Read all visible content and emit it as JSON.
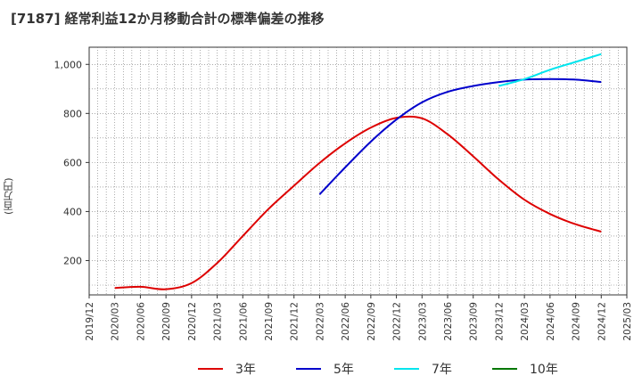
{
  "chart_data": {
    "type": "line",
    "title": "[7187]  経常利益12か月移動合計の標準偏差の推移",
    "ylabel": "(百万円)",
    "xlabel": "",
    "x_ticks": [
      "2019/12",
      "2020/03",
      "2020/06",
      "2020/09",
      "2020/12",
      "2021/03",
      "2021/06",
      "2021/09",
      "2021/12",
      "2022/03",
      "2022/06",
      "2022/09",
      "2022/12",
      "2023/03",
      "2023/06",
      "2023/09",
      "2023/12",
      "2024/03",
      "2024/06",
      "2024/09",
      "2024/12",
      "2025/03"
    ],
    "y_ticks": [
      "200",
      "400",
      "600",
      "800",
      "1,000"
    ],
    "ylim": [
      60,
      1070
    ],
    "grid": true,
    "legend_position": "bottom",
    "series": [
      {
        "name": "3年",
        "color": "#dd0000",
        "points": [
          [
            "2020/03",
            88
          ],
          [
            "2020/06",
            93
          ],
          [
            "2020/09",
            83
          ],
          [
            "2020/12",
            108
          ],
          [
            "2021/03",
            190
          ],
          [
            "2021/06",
            300
          ],
          [
            "2021/09",
            410
          ],
          [
            "2021/12",
            505
          ],
          [
            "2022/03",
            598
          ],
          [
            "2022/06",
            678
          ],
          [
            "2022/09",
            742
          ],
          [
            "2022/12",
            782
          ],
          [
            "2023/03",
            780
          ],
          [
            "2023/06",
            715
          ],
          [
            "2023/09",
            625
          ],
          [
            "2023/12",
            530
          ],
          [
            "2024/03",
            448
          ],
          [
            "2024/06",
            390
          ],
          [
            "2024/09",
            348
          ],
          [
            "2024/12",
            318
          ]
        ]
      },
      {
        "name": "5年",
        "color": "#0000cc",
        "points": [
          [
            "2022/03",
            470
          ],
          [
            "2022/06",
            580
          ],
          [
            "2022/09",
            685
          ],
          [
            "2022/12",
            775
          ],
          [
            "2023/03",
            845
          ],
          [
            "2023/06",
            888
          ],
          [
            "2023/09",
            912
          ],
          [
            "2023/12",
            928
          ],
          [
            "2024/03",
            938
          ],
          [
            "2024/06",
            940
          ],
          [
            "2024/09",
            938
          ],
          [
            "2024/12",
            928
          ]
        ]
      },
      {
        "name": "7年",
        "color": "#00e5ee",
        "points": [
          [
            "2023/12",
            912
          ],
          [
            "2024/03",
            940
          ],
          [
            "2024/06",
            978
          ],
          [
            "2024/09",
            1010
          ],
          [
            "2024/12",
            1042
          ]
        ]
      },
      {
        "name": "10年",
        "color": "#007700",
        "points": []
      }
    ]
  }
}
